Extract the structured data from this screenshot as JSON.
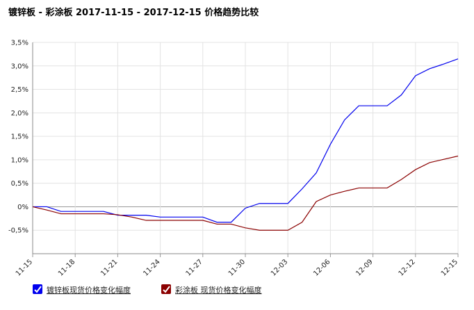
{
  "chart_data": {
    "type": "line",
    "title": "镀锌板 - 彩涂板 2017-11-15 - 2017-12-15 价格趋势比较",
    "categories": [
      "11-15",
      null,
      null,
      "11-18",
      null,
      null,
      "11-21",
      null,
      null,
      "11-24",
      null,
      null,
      "11-27",
      null,
      null,
      "11-30",
      null,
      null,
      "12-03",
      null,
      null,
      "12-06",
      null,
      null,
      "12-09",
      null,
      null,
      "12-12",
      null,
      null,
      "12-15"
    ],
    "series": [
      {
        "name": "镀锌板现货价格变化幅度",
        "color": "#0000ee",
        "values": [
          0,
          0,
          -0.1,
          -0.1,
          -0.1,
          -0.1,
          -0.18,
          -0.18,
          -0.18,
          -0.22,
          -0.22,
          -0.22,
          -0.22,
          -0.33,
          -0.33,
          -0.03,
          0.07,
          0.07,
          0.07,
          0.38,
          0.72,
          1.33,
          1.85,
          2.15,
          2.15,
          2.15,
          2.38,
          2.79,
          2.94,
          3.04,
          3.15
        ]
      },
      {
        "name": "彩涂板 现货价格变化幅度",
        "color": "#8b0000",
        "values": [
          0,
          -0.07,
          -0.15,
          -0.15,
          -0.15,
          -0.15,
          -0.17,
          -0.22,
          -0.29,
          -0.29,
          -0.29,
          -0.29,
          -0.29,
          -0.37,
          -0.37,
          -0.45,
          -0.5,
          -0.5,
          -0.5,
          -0.33,
          0.11,
          0.25,
          0.33,
          0.4,
          0.4,
          0.4,
          0.58,
          0.79,
          0.94,
          1.01,
          1.08
        ]
      }
    ],
    "ylim": [
      -1,
      3.5
    ],
    "yticks": [
      {
        "value": -0.5,
        "label": "-0,5%"
      },
      {
        "value": 0,
        "label": "0%"
      },
      {
        "value": 0.5,
        "label": "0,5%"
      },
      {
        "value": 1,
        "label": "1,0%"
      },
      {
        "value": 1.5,
        "label": "1,5%"
      },
      {
        "value": 2,
        "label": "2,0%"
      },
      {
        "value": 2.5,
        "label": "2,5%"
      },
      {
        "value": 3,
        "label": "3,0%"
      },
      {
        "value": 3.5,
        "label": "3,5%"
      }
    ],
    "grid": true
  }
}
